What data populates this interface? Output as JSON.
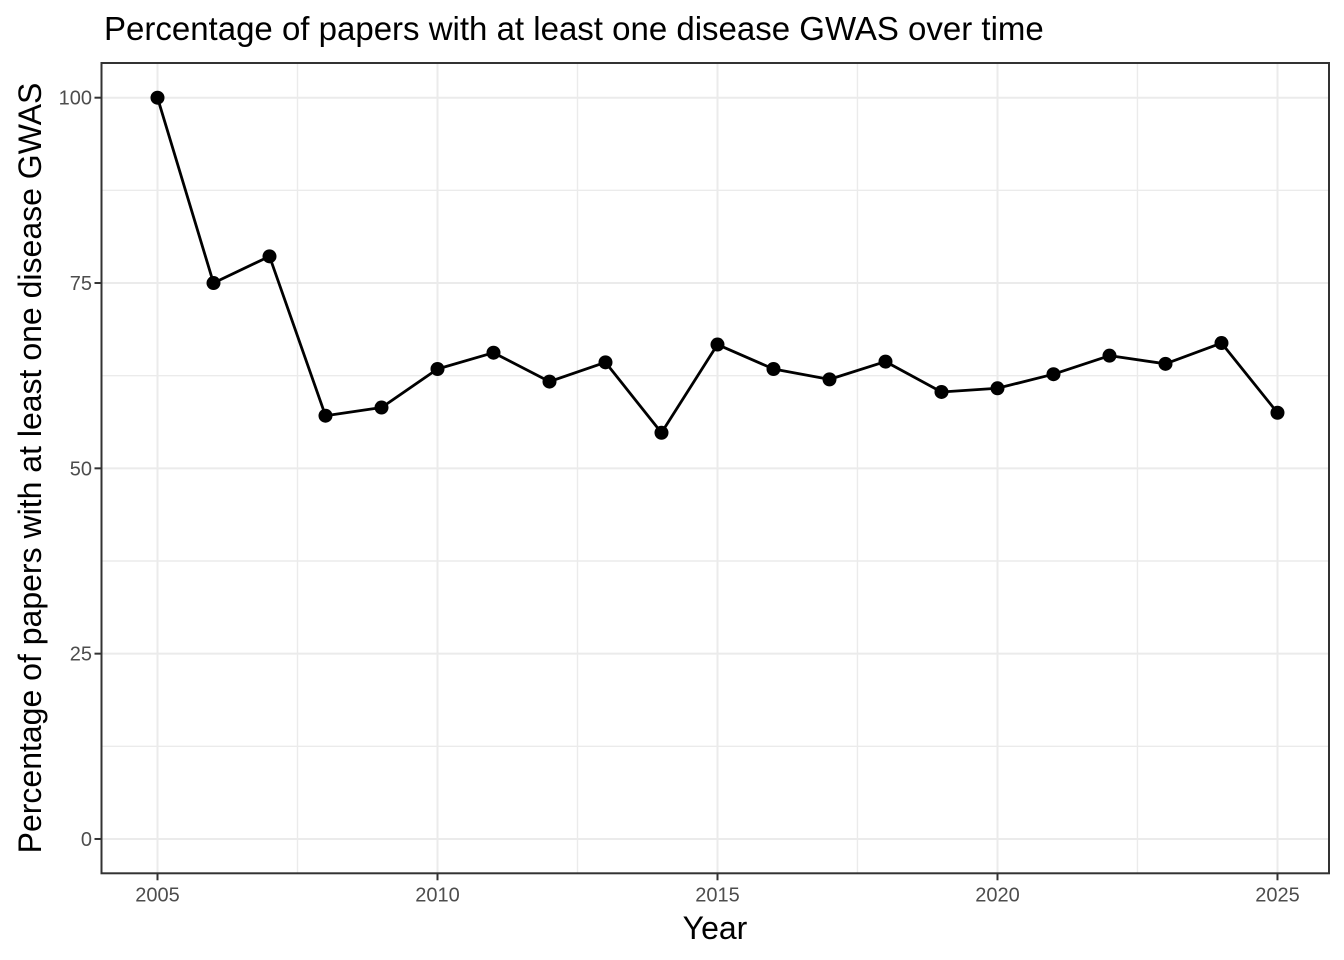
{
  "chart_data": {
    "type": "line",
    "title": "Percentage of papers with at least one disease GWAS over time",
    "xlabel": "Year",
    "ylabel": "Percentage of papers with at least one disease GWAS",
    "series": [
      {
        "name": "percentage-of-papers-with-disease-gwas",
        "x": [
          2005,
          2006,
          2007,
          2008,
          2009,
          2010,
          2011,
          2012,
          2013,
          2014,
          2015,
          2016,
          2017,
          2018,
          2019,
          2020,
          2021,
          2022,
          2023,
          2024,
          2025
        ],
        "values": [
          100,
          75,
          78.6,
          57.1,
          58.2,
          63.4,
          65.6,
          61.7,
          64.3,
          54.8,
          66.7,
          63.4,
          62.0,
          64.4,
          60.3,
          60.8,
          62.7,
          65.2,
          64.1,
          66.9,
          57.5
        ]
      }
    ],
    "x_ticks": [
      2005,
      2010,
      2015,
      2020,
      2025
    ],
    "x_tick_labels": [
      "2005",
      "2010",
      "2015",
      "2020",
      "2025"
    ],
    "y_ticks": [
      0,
      25,
      50,
      75,
      100
    ],
    "y_tick_labels": [
      "0",
      "25",
      "50",
      "75",
      "100"
    ],
    "x_minor_ticks": [
      2007.5,
      2012.5,
      2017.5,
      2022.5
    ],
    "y_minor_ticks": [
      12.5,
      37.5,
      62.5,
      87.5
    ],
    "xlim": [
      2004.0,
      2025.92
    ],
    "ylim": [
      -4.63,
      104.68
    ],
    "grid": true,
    "legend": false,
    "marker": "filled-circle",
    "colors": {
      "line": "#000000",
      "point": "#000000",
      "grid_major": "#EBEBEB",
      "grid_minor": "#EBEBEB",
      "panel_border": "#333333",
      "tick_mark": "#333333",
      "tick_label": "#4D4D4D",
      "title_text": "#000000",
      "background": "#FFFFFF"
    }
  }
}
